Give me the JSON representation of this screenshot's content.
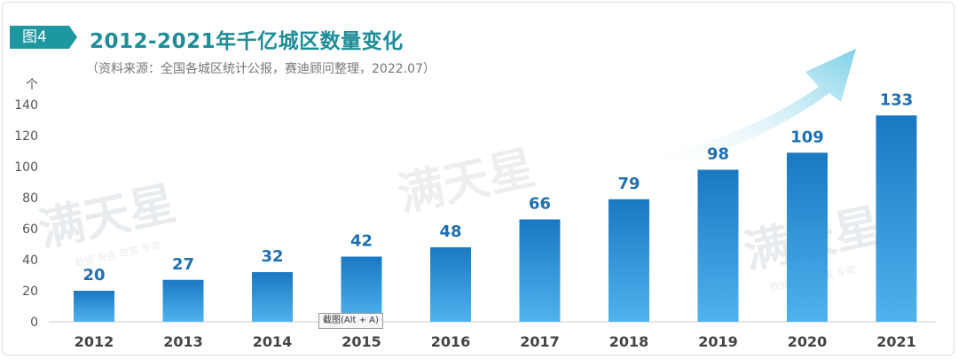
{
  "badge": "图4",
  "header": {
    "title": "2012-2021年千亿城区数量变化",
    "source": "（资料来源：全国各城区统计公报，赛迪顾问整理，2022.07）"
  },
  "watermark": {
    "text": "满天星",
    "subtext": "数据 报告 政策 专家"
  },
  "tooltip": "截图(Alt + A)",
  "colors": {
    "bar_top": "#1a78c2",
    "bar_bottom": "#4fb3ee",
    "label": "#1f6fb2",
    "title": "#1e8d98",
    "badge": "#1d98a0",
    "arrow": "#7fd3ea"
  },
  "chart_data": {
    "type": "bar",
    "unit": "个",
    "categories": [
      "2012",
      "2013",
      "2014",
      "2015",
      "2016",
      "2017",
      "2018",
      "2019",
      "2020",
      "2021"
    ],
    "values": [
      20,
      27,
      32,
      42,
      48,
      66,
      79,
      98,
      109,
      133
    ],
    "ylim": [
      0,
      140
    ],
    "yticks": [
      0,
      20,
      40,
      60,
      80,
      100,
      120,
      140
    ],
    "grid": false,
    "legend": "none"
  }
}
